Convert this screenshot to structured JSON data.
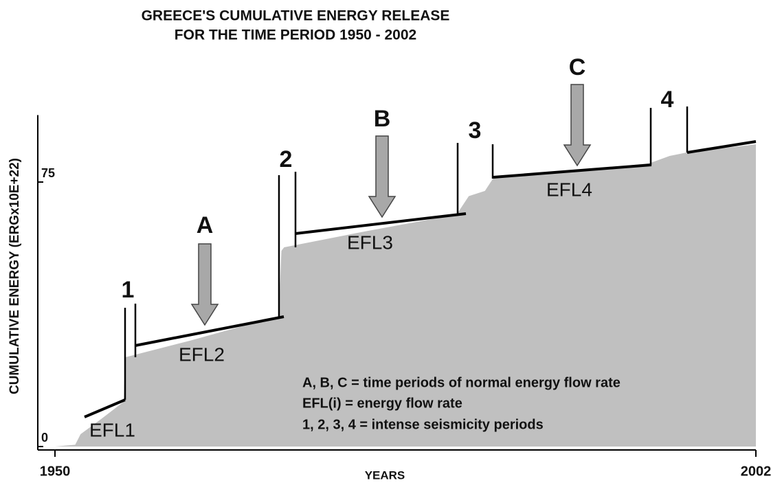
{
  "chart_data": {
    "type": "area",
    "title": "GREECE'S CUMULATIVE ENERGY RELEASE",
    "subtitle": "FOR THE TIME PERIOD 1950 - 2002",
    "x_label": "YEARS",
    "y_label": "CUMULATIVE ENERGY (ERGx10E+22)",
    "color": "#c0c0c0",
    "xlim": [
      1950,
      2002
    ],
    "xticks": [
      1950,
      2002
    ],
    "ylim": [
      0,
      94
    ],
    "yticks": [
      0,
      75
    ],
    "series": [
      {
        "x": [
          1950,
          1951.5,
          1951.7,
          1951.9,
          1953.5,
          1955.1,
          1955.2,
          1960,
          1966.6,
          1966.8,
          1967,
          1973,
          1979.8,
          1980.7,
          1981.9,
          1982.5,
          1988,
          1994.1,
          1995.6,
          1996.9,
          2002
        ],
        "values": [
          0,
          0.5,
          2,
          3.5,
          8,
          12.7,
          25.3,
          30,
          37,
          55.5,
          56.5,
          61,
          65.8,
          71,
          72.5,
          76,
          78,
          80.3,
          82.4,
          83.4,
          85.7
        ]
      }
    ],
    "annotations": {
      "periods": [
        "1",
        "2",
        "3",
        "4"
      ],
      "normal": [
        "A",
        "B",
        "C"
      ],
      "efl": [
        "EFL1",
        "EFL2",
        "EFL3",
        "EFL4"
      ],
      "legend": [
        "A, B, C = time periods of normal energy flow rate",
        "EFL(i) = energy flow rate",
        "1, 2, 3, 4 = intense seismicity periods"
      ]
    }
  }
}
